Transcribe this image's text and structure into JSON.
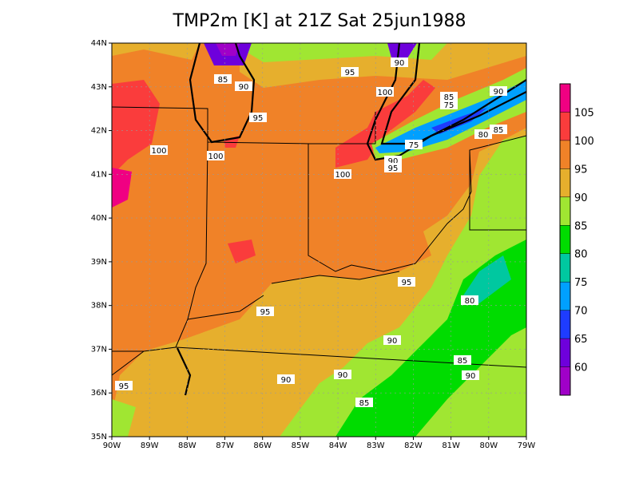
{
  "title": "TMP2m [K] at 21Z Sat 25jun1988",
  "map": {
    "x_labels": [
      "90W",
      "89W",
      "88W",
      "87W",
      "86W",
      "85W",
      "84W",
      "83W",
      "82W",
      "81W",
      "80W",
      "79W"
    ],
    "y_labels": [
      "35N",
      "36N",
      "37N",
      "38N",
      "39N",
      "40N",
      "41N",
      "42N",
      "43N",
      "44N"
    ],
    "contour_labels": [
      85,
      90,
      95,
      100,
      100,
      95,
      90,
      100,
      85,
      75,
      90,
      80,
      85,
      75,
      90,
      95,
      100,
      95,
      80,
      95,
      90,
      85,
      90,
      90,
      90,
      95,
      85
    ]
  },
  "colorbar": {
    "levels": [
      60,
      65,
      70,
      75,
      80,
      85,
      90,
      95,
      100,
      105
    ],
    "colors": [
      "#a000c8",
      "#6e00dc",
      "#1e3cff",
      "#00a0ff",
      "#00c8a0",
      "#00dc00",
      "#a0e632",
      "#e6af2d",
      "#f08228",
      "#fa3c3c",
      "#f00082"
    ]
  }
}
